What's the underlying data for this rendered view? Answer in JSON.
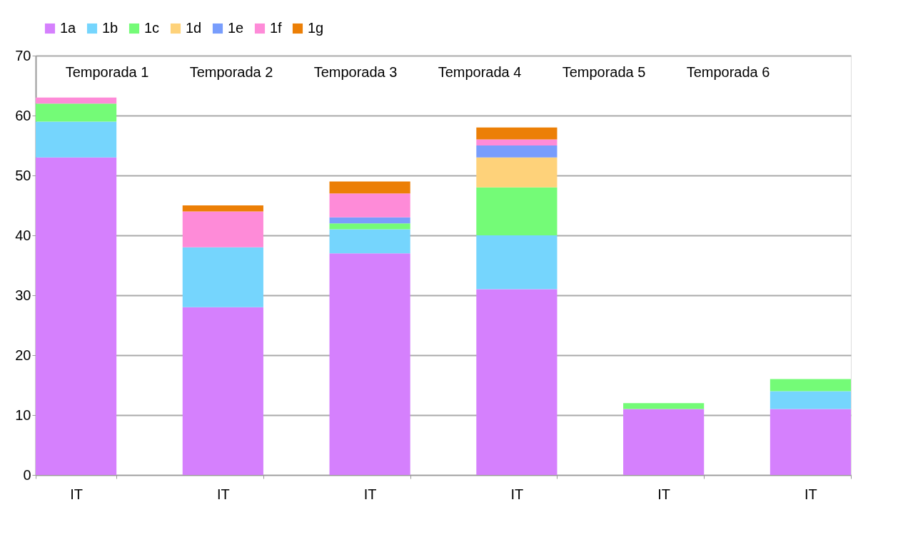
{
  "chart_data": {
    "type": "bar",
    "stacked": true,
    "categories": [
      "IT",
      "IT",
      "IT",
      "IT",
      "IT",
      "IT"
    ],
    "series": [
      {
        "name": "1a",
        "color": "#d580fd",
        "values": [
          53,
          28,
          37,
          31,
          11,
          11
        ]
      },
      {
        "name": "1b",
        "color": "#75d5fd",
        "values": [
          6,
          10,
          4,
          9,
          null,
          3
        ]
      },
      {
        "name": "1c",
        "color": "#74fb77",
        "values": [
          3,
          null,
          1,
          8,
          1,
          2
        ]
      },
      {
        "name": "1d",
        "color": "#fed27a",
        "values": [
          null,
          null,
          null,
          5,
          null,
          null
        ]
      },
      {
        "name": "1e",
        "color": "#789dfc",
        "values": [
          null,
          null,
          1,
          2,
          null,
          null
        ]
      },
      {
        "name": "1f",
        "color": "#fe8bd8",
        "values": [
          1,
          6,
          4,
          1,
          null,
          null
        ]
      },
      {
        "name": "1g",
        "color": "#ec7f06",
        "values": [
          null,
          1,
          2,
          2,
          null,
          null
        ]
      }
    ],
    "annotations": [
      "Temporada 1",
      "Temporada 2",
      "Temporada 3",
      "Temporada 4",
      "Temporada 5",
      "Temporada 6"
    ],
    "ylim": [
      0,
      70
    ],
    "yticks": [
      0,
      10,
      20,
      30,
      40,
      50,
      60,
      70
    ],
    "grid": "y",
    "legend": "top"
  }
}
